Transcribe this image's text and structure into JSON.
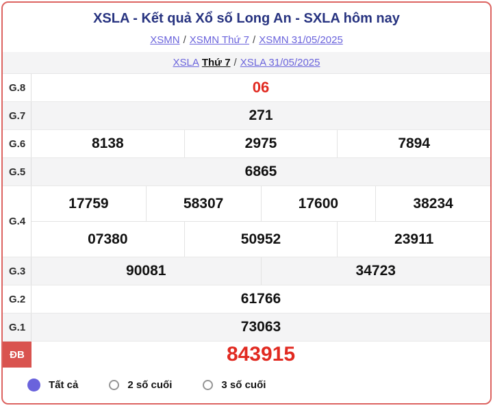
{
  "page": {
    "title": "XSLA - Kết quả Xổ số Long An - SXLA hôm nay"
  },
  "breadcrumb_top": {
    "separator": "/",
    "links": [
      "XSMN",
      "XSMN Thứ 7",
      "XSMN 31/05/2025"
    ]
  },
  "breadcrumb_sub": {
    "region_link": "XSLA",
    "day_label": "Thứ 7",
    "separator": "/",
    "date_link": "XSLA 31/05/2025"
  },
  "results_table": {
    "rows": [
      {
        "label": "G.8",
        "values": [
          [
            "06"
          ]
        ]
      },
      {
        "label": "G.7",
        "values": [
          [
            "271"
          ]
        ]
      },
      {
        "label": "G.6",
        "values": [
          [
            "8138",
            "2975",
            "7894"
          ]
        ]
      },
      {
        "label": "G.5",
        "values": [
          [
            "6865"
          ]
        ]
      },
      {
        "label": "G.4",
        "values": [
          [
            "17759",
            "58307",
            "17600",
            "38234"
          ],
          [
            "07380",
            "50952",
            "23911"
          ]
        ]
      },
      {
        "label": "G.3",
        "values": [
          [
            "90081",
            "34723"
          ]
        ]
      },
      {
        "label": "G.2",
        "values": [
          [
            "61766"
          ]
        ]
      },
      {
        "label": "G.1",
        "values": [
          [
            "73063"
          ]
        ]
      },
      {
        "label": "ĐB",
        "values": [
          [
            "843915"
          ]
        ]
      }
    ]
  },
  "filters": {
    "options": [
      {
        "label": "Tất cả",
        "selected": true
      },
      {
        "label": "2 số cuối",
        "selected": false
      },
      {
        "label": "3 số cuối",
        "selected": false
      }
    ]
  },
  "colors": {
    "accent_link": "#6a63dc",
    "highlight_red": "#e12a21",
    "frame_border": "#dc6360",
    "special_label_bg": "#d9534f",
    "title_navy": "#273380"
  }
}
